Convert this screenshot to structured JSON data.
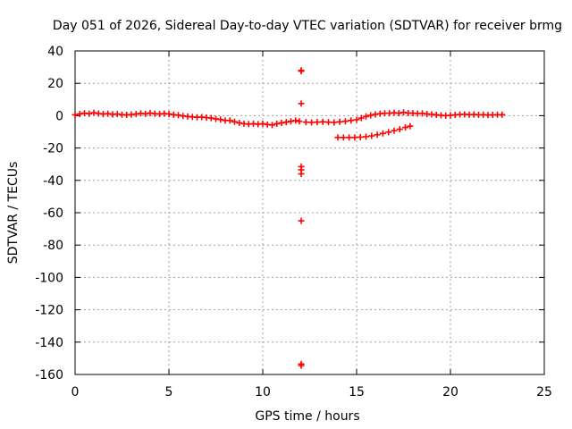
{
  "colors": {
    "series": "#ff0000",
    "grid": "#a0a0a0",
    "axis": "#000000",
    "background": "#ffffff"
  },
  "chart_data": {
    "type": "scatter",
    "title": "Day 051 of 2026, Sidereal Day-to-day VTEC variation (SDTVAR) for receiver brmg",
    "xlabel": "GPS time / hours",
    "ylabel": "SDTVAR / TECUs",
    "xlim": [
      0,
      25
    ],
    "ylim": [
      -160,
      40
    ],
    "xticks": [
      0,
      5,
      10,
      15,
      20,
      25
    ],
    "yticks": [
      40,
      20,
      0,
      -20,
      -40,
      -60,
      -80,
      -100,
      -120,
      -140,
      -160
    ],
    "grid": true,
    "marker": "plus",
    "series": [
      {
        "name": "SDTVAR",
        "points": [
          [
            0.0,
            0.5
          ],
          [
            0.25,
            1.0
          ],
          [
            0.5,
            1.5
          ],
          [
            0.75,
            1.2
          ],
          [
            1.0,
            1.8
          ],
          [
            1.25,
            1.3
          ],
          [
            1.5,
            1.0
          ],
          [
            1.75,
            1.2
          ],
          [
            2.0,
            0.8
          ],
          [
            2.25,
            1.0
          ],
          [
            2.5,
            0.6
          ],
          [
            2.75,
            0.5
          ],
          [
            3.0,
            0.7
          ],
          [
            3.25,
            1.0
          ],
          [
            3.5,
            1.4
          ],
          [
            3.75,
            1.1
          ],
          [
            4.0,
            1.6
          ],
          [
            4.25,
            1.2
          ],
          [
            4.5,
            1.0
          ],
          [
            4.75,
            1.3
          ],
          [
            5.0,
            1.0
          ],
          [
            5.25,
            0.6
          ],
          [
            5.5,
            0.3
          ],
          [
            5.75,
            -0.2
          ],
          [
            6.0,
            -0.5
          ],
          [
            6.25,
            -0.8
          ],
          [
            6.5,
            -1.0
          ],
          [
            6.75,
            -0.9
          ],
          [
            7.0,
            -1.2
          ],
          [
            7.25,
            -1.5
          ],
          [
            7.5,
            -2.0
          ],
          [
            7.75,
            -2.4
          ],
          [
            8.0,
            -3.0
          ],
          [
            8.25,
            -3.0
          ],
          [
            8.5,
            -3.8
          ],
          [
            8.75,
            -4.5
          ],
          [
            9.0,
            -5.0
          ],
          [
            9.25,
            -5.2
          ],
          [
            9.5,
            -5.0
          ],
          [
            9.75,
            -5.3
          ],
          [
            10.0,
            -5.0
          ],
          [
            10.25,
            -5.5
          ],
          [
            10.5,
            -5.8
          ],
          [
            10.75,
            -5.0
          ],
          [
            11.0,
            -4.5
          ],
          [
            11.25,
            -4.0
          ],
          [
            11.5,
            -3.5
          ],
          [
            11.75,
            -3.0
          ],
          [
            11.95,
            -3.5
          ],
          [
            12.3,
            -4.0
          ],
          [
            12.6,
            -4.2
          ],
          [
            12.9,
            -4.0
          ],
          [
            13.2,
            -3.8
          ],
          [
            13.5,
            -4.0
          ],
          [
            13.8,
            -4.2
          ],
          [
            14.1,
            -3.8
          ],
          [
            14.4,
            -3.5
          ],
          [
            14.7,
            -3.0
          ],
          [
            15.0,
            -2.5
          ],
          [
            15.25,
            -1.5
          ],
          [
            15.5,
            -0.5
          ],
          [
            15.75,
            0.2
          ],
          [
            16.0,
            0.8
          ],
          [
            16.25,
            1.2
          ],
          [
            16.5,
            1.5
          ],
          [
            16.75,
            1.5
          ],
          [
            17.0,
            1.8
          ],
          [
            17.25,
            1.5
          ],
          [
            17.5,
            2.0
          ],
          [
            17.75,
            1.6
          ],
          [
            18.0,
            1.5
          ],
          [
            18.25,
            1.3
          ],
          [
            18.5,
            1.4
          ],
          [
            18.75,
            1.0
          ],
          [
            19.0,
            0.8
          ],
          [
            19.25,
            0.5
          ],
          [
            19.5,
            0.2
          ],
          [
            19.75,
            0.0
          ],
          [
            20.0,
            0.2
          ],
          [
            20.25,
            0.5
          ],
          [
            20.5,
            0.7
          ],
          [
            20.75,
            0.8
          ],
          [
            21.0,
            0.6
          ],
          [
            21.25,
            0.7
          ],
          [
            21.5,
            0.5
          ],
          [
            21.75,
            0.6
          ],
          [
            22.0,
            0.4
          ],
          [
            22.25,
            0.5
          ],
          [
            22.5,
            0.6
          ],
          [
            22.75,
            0.6
          ],
          [
            14.0,
            -13.5
          ],
          [
            14.3,
            -13.5
          ],
          [
            14.6,
            -13.5
          ],
          [
            14.9,
            -13.5
          ],
          [
            15.2,
            -13.3
          ],
          [
            15.5,
            -13.0
          ],
          [
            15.8,
            -12.5
          ],
          [
            16.1,
            -11.8
          ],
          [
            16.4,
            -11.0
          ],
          [
            16.7,
            -10.2
          ],
          [
            17.0,
            -9.3
          ],
          [
            17.3,
            -8.4
          ],
          [
            17.6,
            -7.3
          ],
          [
            17.85,
            -6.5
          ],
          [
            12.05,
            28.0
          ],
          [
            12.05,
            27.5
          ],
          [
            12.05,
            7.5
          ],
          [
            12.05,
            -31.5
          ],
          [
            12.05,
            -33.5
          ],
          [
            12.05,
            -36.0
          ],
          [
            12.05,
            -65.0
          ],
          [
            12.05,
            -153.5
          ],
          [
            12.05,
            -154.5
          ]
        ]
      }
    ]
  }
}
